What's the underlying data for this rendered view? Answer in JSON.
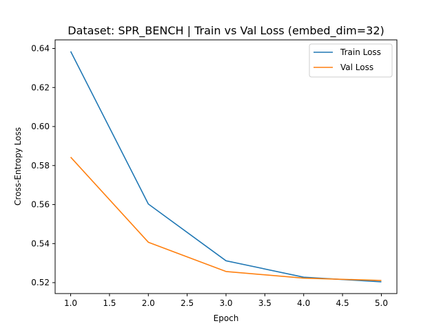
{
  "chart_data": {
    "type": "line",
    "title": "Dataset: SPR_BENCH | Train vs Val Loss (embed_dim=32)",
    "xlabel": "Epoch",
    "ylabel": "Cross-Entropy Loss",
    "x": [
      1,
      2,
      3,
      4,
      5
    ],
    "series": [
      {
        "name": "Train Loss",
        "color": "#1f77b4",
        "values": [
          0.6385,
          0.5603,
          0.5312,
          0.5228,
          0.5204
        ]
      },
      {
        "name": "Val Loss",
        "color": "#ff7f0e",
        "values": [
          0.5843,
          0.5407,
          0.5257,
          0.5223,
          0.5211
        ]
      }
    ],
    "xlim": [
      0.8,
      5.2
    ],
    "ylim": [
      0.5144,
      0.6444
    ],
    "xticks": [
      1.0,
      1.5,
      2.0,
      2.5,
      3.0,
      3.5,
      4.0,
      4.5,
      5.0
    ],
    "xtick_labels": [
      "1.0",
      "1.5",
      "2.0",
      "2.5",
      "3.0",
      "3.5",
      "4.0",
      "4.5",
      "5.0"
    ],
    "yticks": [
      0.52,
      0.54,
      0.56,
      0.58,
      0.6,
      0.62,
      0.64
    ],
    "ytick_labels": [
      "0.52",
      "0.54",
      "0.56",
      "0.58",
      "0.60",
      "0.62",
      "0.64"
    ],
    "grid": false,
    "legend_position": "top-right"
  }
}
